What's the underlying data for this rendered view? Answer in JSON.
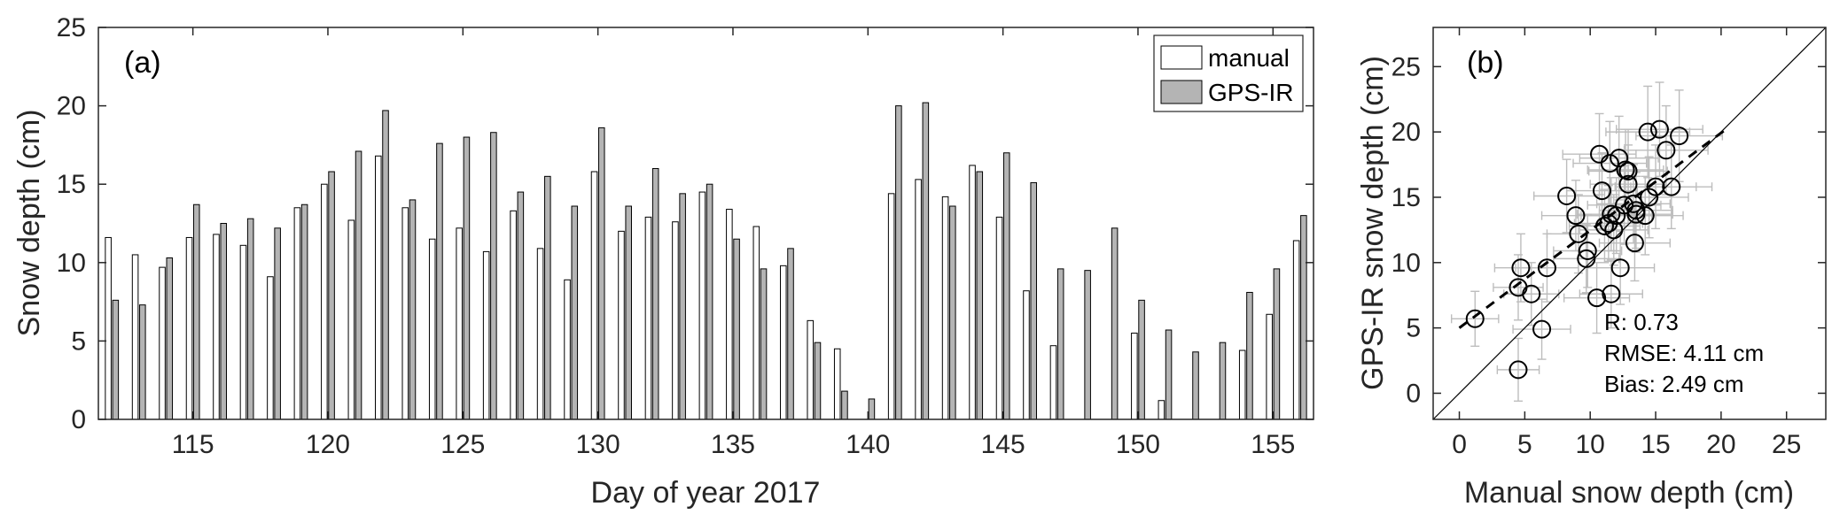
{
  "chart_data": [
    {
      "type": "bar",
      "panel_label": "(a)",
      "xlabel": "Day of year 2017",
      "ylabel": "Snow depth (cm)",
      "xlim": [
        111.5,
        156.5
      ],
      "ylim": [
        0,
        25
      ],
      "xticks": [
        115,
        120,
        125,
        130,
        135,
        140,
        145,
        150,
        155
      ],
      "yticks": [
        0,
        5,
        10,
        15,
        20,
        25
      ],
      "legend_position": "top-right",
      "x": [
        112,
        113,
        114,
        115,
        116,
        117,
        118,
        119,
        120,
        121,
        122,
        123,
        124,
        125,
        126,
        127,
        128,
        129,
        130,
        131,
        132,
        133,
        134,
        135,
        136,
        137,
        138,
        139,
        140,
        141,
        142,
        143,
        144,
        145,
        146,
        147,
        148,
        149,
        150,
        151,
        152,
        153,
        154,
        155,
        156
      ],
      "series": [
        {
          "name": "manual",
          "color": "#ffffff",
          "values": [
            11.6,
            10.5,
            9.7,
            11.6,
            11.8,
            11.1,
            9.1,
            13.5,
            15.0,
            12.7,
            16.8,
            13.5,
            11.5,
            12.2,
            10.7,
            13.3,
            10.9,
            8.9,
            15.8,
            12.0,
            12.9,
            12.6,
            14.5,
            13.4,
            12.3,
            9.8,
            6.3,
            4.5,
            null,
            14.4,
            15.3,
            14.2,
            16.2,
            12.9,
            8.2,
            4.7,
            null,
            null,
            5.5,
            1.2,
            null,
            null,
            4.4,
            6.7,
            11.4
          ]
        },
        {
          "name": "GPS-IR",
          "color": "#b4b4b4",
          "values": [
            7.6,
            7.3,
            10.3,
            13.7,
            12.5,
            12.8,
            12.2,
            13.7,
            15.8,
            17.1,
            19.7,
            14.0,
            17.6,
            18.0,
            18.3,
            14.5,
            15.5,
            13.6,
            18.6,
            13.6,
            16.0,
            14.4,
            15.0,
            11.5,
            9.6,
            10.9,
            4.9,
            1.8,
            1.3,
            20.0,
            20.2,
            13.6,
            15.8,
            17.0,
            15.1,
            9.6,
            9.5,
            12.2,
            7.6,
            5.7,
            4.3,
            4.9,
            8.1,
            9.6,
            13.0
          ]
        }
      ]
    },
    {
      "type": "scatter",
      "panel_label": "(b)",
      "xlabel": "Manual snow depth (cm)",
      "ylabel": "GPS-IR snow depth (cm)",
      "xlim": [
        -2,
        28
      ],
      "ylim": [
        -2,
        28
      ],
      "xticks": [
        0,
        5,
        10,
        15,
        20,
        25
      ],
      "yticks": [
        0,
        5,
        10,
        15,
        20,
        25
      ],
      "one_to_one_line": true,
      "fit_line": {
        "x": [
          0,
          20.5
        ],
        "y": [
          5.0,
          20.3
        ]
      },
      "stats": [
        "R: 0.73",
        "RMSE: 4.11 cm",
        "Bias: 2.49 cm"
      ],
      "error_color": "#bdbdbd",
      "points": [
        {
          "x": 1.2,
          "y": 5.7,
          "ex": 1.8,
          "ey": 2.1
        },
        {
          "x": 4.5,
          "y": 1.8,
          "ex": 1.6,
          "ey": 2.4
        },
        {
          "x": 4.5,
          "y": 8.1,
          "ex": 1.9,
          "ey": 2.5
        },
        {
          "x": 4.7,
          "y": 9.6,
          "ex": 2.0,
          "ey": 2.6
        },
        {
          "x": 5.5,
          "y": 7.6,
          "ex": 2.1,
          "ey": 2.4
        },
        {
          "x": 6.3,
          "y": 4.9,
          "ex": 2.2,
          "ey": 2.3
        },
        {
          "x": 6.7,
          "y": 9.6,
          "ex": 2.4,
          "ey": 2.6
        },
        {
          "x": 8.2,
          "y": 15.1,
          "ex": 2.5,
          "ey": 2.8
        },
        {
          "x": 8.9,
          "y": 13.6,
          "ex": 2.6,
          "ey": 2.7
        },
        {
          "x": 9.1,
          "y": 12.2,
          "ex": 2.4,
          "ey": 3.0
        },
        {
          "x": 9.7,
          "y": 10.3,
          "ex": 2.5,
          "ey": 2.6
        },
        {
          "x": 9.8,
          "y": 10.9,
          "ex": 2.6,
          "ey": 2.8
        },
        {
          "x": 10.5,
          "y": 7.3,
          "ex": 2.5,
          "ey": 2.7
        },
        {
          "x": 10.7,
          "y": 18.3,
          "ex": 2.8,
          "ey": 3.1
        },
        {
          "x": 10.9,
          "y": 15.5,
          "ex": 2.7,
          "ey": 2.9
        },
        {
          "x": 11.1,
          "y": 12.8,
          "ex": 2.7,
          "ey": 2.8
        },
        {
          "x": 11.4,
          "y": 13.0,
          "ex": 2.6,
          "ey": 2.9
        },
        {
          "x": 11.5,
          "y": 17.6,
          "ex": 2.8,
          "ey": 3.2
        },
        {
          "x": 11.6,
          "y": 13.7,
          "ex": 2.6,
          "ey": 2.8
        },
        {
          "x": 11.6,
          "y": 7.6,
          "ex": 2.4,
          "ey": 2.6
        },
        {
          "x": 11.8,
          "y": 12.5,
          "ex": 2.6,
          "ey": 2.7
        },
        {
          "x": 12.0,
          "y": 13.6,
          "ex": 2.7,
          "ey": 2.9
        },
        {
          "x": 12.2,
          "y": 18.0,
          "ex": 3.0,
          "ey": 3.2
        },
        {
          "x": 12.3,
          "y": 9.6,
          "ex": 2.6,
          "ey": 2.8
        },
        {
          "x": 12.6,
          "y": 14.4,
          "ex": 2.8,
          "ey": 3.0
        },
        {
          "x": 12.7,
          "y": 17.1,
          "ex": 2.9,
          "ey": 3.1
        },
        {
          "x": 12.9,
          "y": 16.0,
          "ex": 2.9,
          "ey": 3.0
        },
        {
          "x": 12.9,
          "y": 17.0,
          "ex": 3.0,
          "ey": 3.2
        },
        {
          "x": 13.3,
          "y": 14.5,
          "ex": 2.8,
          "ey": 3.0
        },
        {
          "x": 13.4,
          "y": 11.5,
          "ex": 2.7,
          "ey": 2.9
        },
        {
          "x": 13.5,
          "y": 14.0,
          "ex": 2.8,
          "ey": 2.9
        },
        {
          "x": 13.5,
          "y": 13.7,
          "ex": 2.8,
          "ey": 2.9
        },
        {
          "x": 14.2,
          "y": 13.6,
          "ex": 2.9,
          "ey": 3.0
        },
        {
          "x": 14.4,
          "y": 20.0,
          "ex": 3.2,
          "ey": 3.5
        },
        {
          "x": 14.5,
          "y": 15.0,
          "ex": 3.0,
          "ey": 3.1
        },
        {
          "x": 15.0,
          "y": 15.8,
          "ex": 3.1,
          "ey": 3.2
        },
        {
          "x": 15.3,
          "y": 20.2,
          "ex": 3.3,
          "ey": 3.6
        },
        {
          "x": 15.8,
          "y": 18.6,
          "ex": 3.2,
          "ey": 3.4
        },
        {
          "x": 16.2,
          "y": 15.8,
          "ex": 3.1,
          "ey": 3.2
        },
        {
          "x": 16.8,
          "y": 19.7,
          "ex": 3.3,
          "ey": 3.5
        }
      ]
    }
  ]
}
